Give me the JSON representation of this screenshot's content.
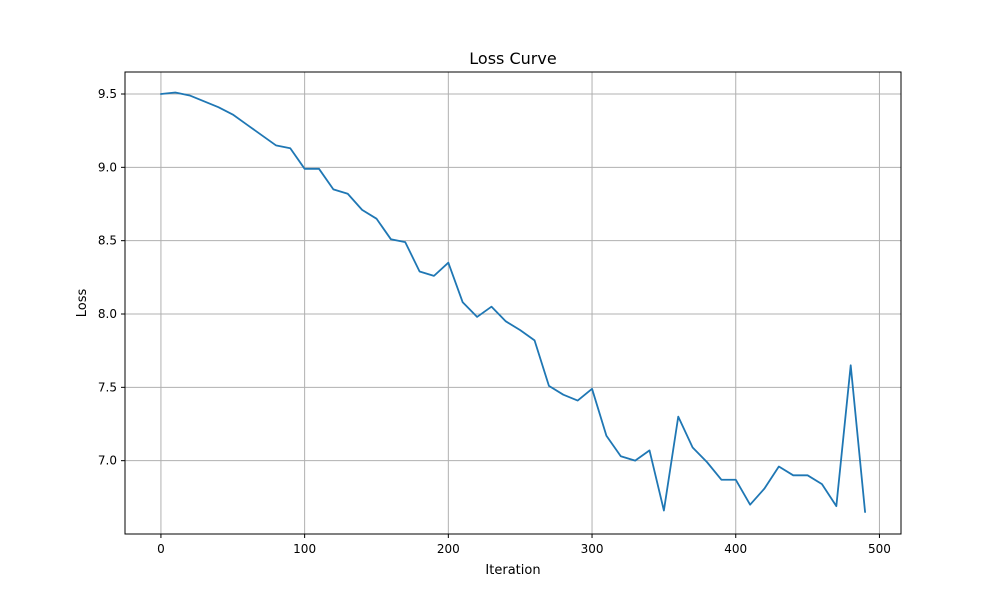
{
  "chart_data": {
    "type": "line",
    "title": "Loss Curve",
    "xlabel": "Iteration",
    "ylabel": "Loss",
    "xlim": [
      -25,
      515
    ],
    "ylim": [
      6.5,
      9.65
    ],
    "xticks": [
      0,
      100,
      200,
      300,
      400,
      500
    ],
    "yticks": [
      7.0,
      7.5,
      8.0,
      8.5,
      9.0,
      9.5
    ],
    "xtick_labels": [
      "0",
      "100",
      "200",
      "300",
      "400",
      "500"
    ],
    "ytick_labels": [
      "7.0",
      "7.5",
      "8.0",
      "8.5",
      "9.0",
      "9.5"
    ],
    "grid": true,
    "series": [
      {
        "color": "#1f77b4",
        "x": [
          0,
          10,
          20,
          30,
          40,
          50,
          60,
          70,
          80,
          90,
          100,
          110,
          120,
          130,
          140,
          150,
          160,
          170,
          180,
          190,
          200,
          210,
          220,
          230,
          240,
          250,
          260,
          270,
          280,
          290,
          300,
          310,
          320,
          330,
          340,
          350,
          360,
          370,
          380,
          390,
          400,
          410,
          420,
          430,
          440,
          450,
          460,
          470,
          480,
          490
        ],
        "y": [
          9.5,
          9.51,
          9.49,
          9.45,
          9.41,
          9.36,
          9.29,
          9.22,
          9.15,
          9.13,
          8.99,
          8.99,
          8.85,
          8.82,
          8.71,
          8.65,
          8.51,
          8.49,
          8.29,
          8.26,
          8.35,
          8.08,
          7.98,
          8.05,
          7.95,
          7.89,
          7.82,
          7.51,
          7.45,
          7.41,
          7.49,
          7.17,
          7.03,
          7.0,
          7.07,
          6.66,
          7.3,
          7.09,
          6.99,
          6.87,
          6.87,
          6.7,
          6.81,
          6.96,
          6.9,
          6.9,
          6.84,
          6.69,
          7.65,
          6.65
        ]
      }
    ]
  }
}
